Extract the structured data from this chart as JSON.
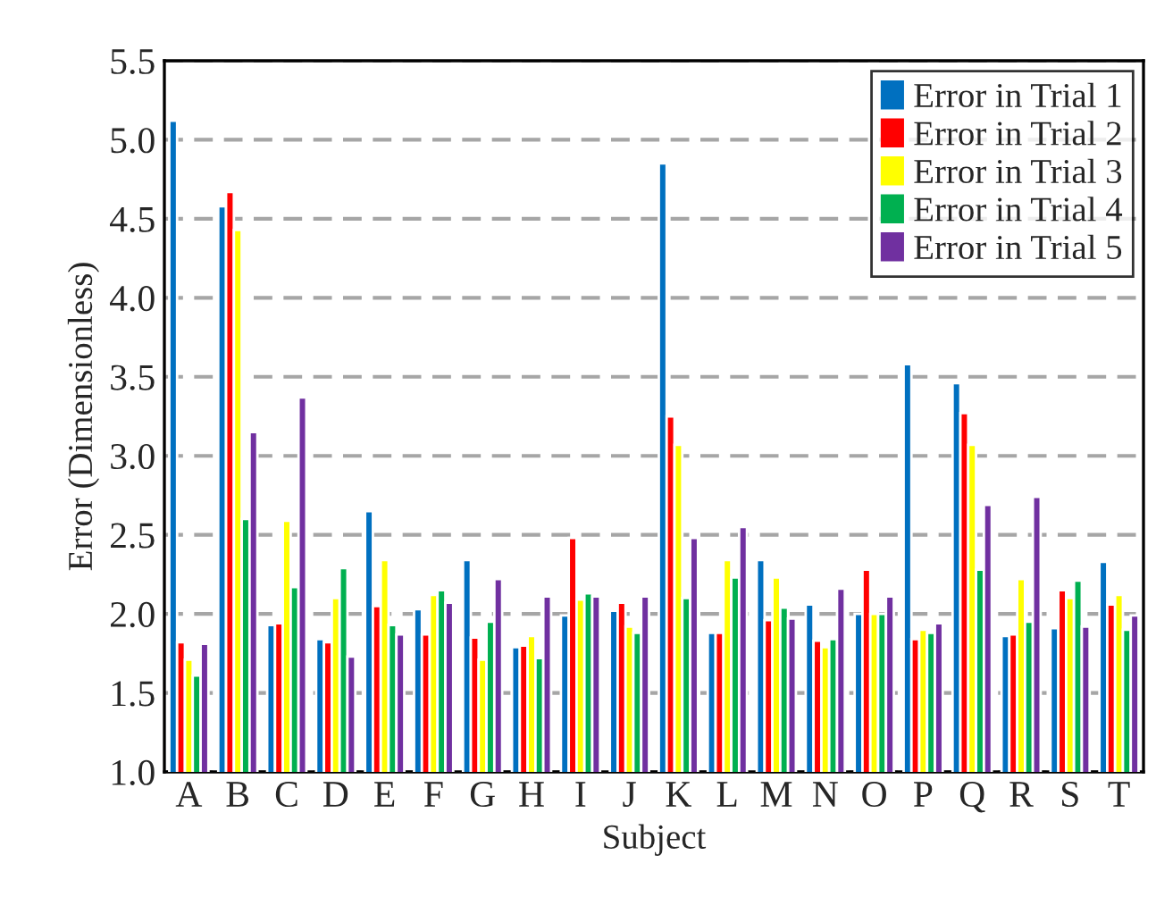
{
  "chart_data": {
    "type": "bar",
    "xlabel": "Subject",
    "ylabel": "Error (Dimensionless)",
    "categories": [
      "A",
      "B",
      "C",
      "D",
      "E",
      "F",
      "G",
      "H",
      "I",
      "J",
      "K",
      "L",
      "M",
      "N",
      "O",
      "P",
      "Q",
      "R",
      "S",
      "T"
    ],
    "series": [
      {
        "name": "Error in Trial 1",
        "color": "#0070c0",
        "values": [
          5.12,
          4.58,
          1.93,
          1.84,
          2.65,
          2.03,
          2.34,
          1.79,
          1.99,
          2.02,
          4.85,
          1.88,
          2.34,
          2.06,
          2.0,
          3.58,
          3.46,
          1.86,
          1.91,
          2.33
        ]
      },
      {
        "name": "Error in Trial 2",
        "color": "#ff0000",
        "values": [
          1.82,
          4.67,
          1.94,
          1.82,
          2.05,
          1.87,
          1.85,
          1.8,
          2.48,
          2.07,
          3.25,
          1.88,
          1.96,
          1.83,
          2.28,
          1.84,
          3.27,
          1.87,
          2.15,
          2.06
        ]
      },
      {
        "name": "Error in Trial 3",
        "color": "#ffff00",
        "values": [
          1.71,
          4.43,
          2.59,
          2.1,
          2.34,
          2.12,
          1.71,
          1.86,
          2.09,
          1.92,
          3.07,
          2.34,
          2.23,
          1.79,
          2.0,
          1.9,
          3.07,
          2.22,
          2.1,
          2.12
        ]
      },
      {
        "name": "Error in Trial 4",
        "color": "#00b050",
        "values": [
          1.61,
          2.6,
          2.17,
          2.29,
          1.93,
          2.15,
          1.95,
          1.72,
          2.13,
          1.88,
          2.1,
          2.23,
          2.04,
          1.84,
          2.0,
          1.88,
          2.28,
          1.95,
          2.21,
          1.9
        ]
      },
      {
        "name": "Error in Trial 5",
        "color": "#7030a0",
        "values": [
          1.81,
          3.15,
          3.37,
          1.73,
          1.87,
          2.07,
          2.22,
          2.11,
          2.11,
          2.11,
          2.48,
          2.55,
          1.97,
          2.16,
          2.11,
          1.94,
          2.69,
          2.74,
          1.92,
          1.99
        ]
      }
    ],
    "ylim": [
      1.0,
      5.5
    ],
    "yticks": [
      {
        "value": 1.0,
        "label": "1.0"
      },
      {
        "value": 1.5,
        "label": "1.5"
      },
      {
        "value": 2.0,
        "label": "2.0"
      },
      {
        "value": 2.5,
        "label": "2.5"
      },
      {
        "value": 3.0,
        "label": "3.0"
      },
      {
        "value": 3.5,
        "label": "3.5"
      },
      {
        "value": 4.0,
        "label": "4.0"
      },
      {
        "value": 4.5,
        "label": "4.5"
      },
      {
        "value": 5.0,
        "label": "5.0"
      },
      {
        "value": 5.5,
        "label": "5.5"
      }
    ],
    "grid": "y",
    "legend": "top right"
  }
}
